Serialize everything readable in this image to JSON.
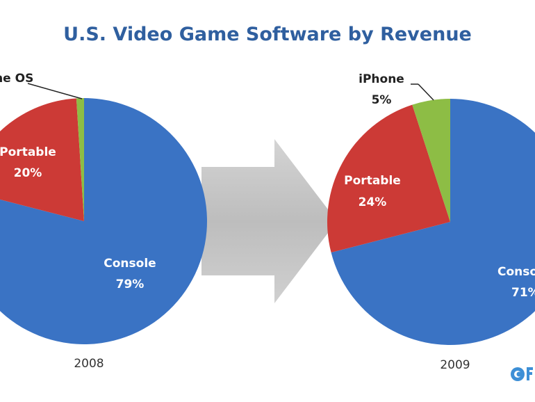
{
  "chart_data": [
    {
      "type": "pie",
      "title": "U.S. Video Game Software by Revenue",
      "caption": "2008",
      "slices": [
        {
          "label": "Console",
          "value": 79,
          "display": "79%",
          "color": "#3a73c4"
        },
        {
          "label": "Portable",
          "value": 20,
          "display": "20%",
          "color": "#cc3a36"
        },
        {
          "label": "iPhone OS",
          "value": 1,
          "display": "",
          "color": "#8dbd45"
        }
      ]
    },
    {
      "type": "pie",
      "caption": "2009",
      "slices": [
        {
          "label": "Console",
          "value": 71,
          "display": "71%",
          "color": "#3a73c4"
        },
        {
          "label": "Portable",
          "value": 24,
          "display": "24%",
          "color": "#cc3a36"
        },
        {
          "label": "iPhone",
          "value": 5,
          "display": "5%",
          "color": "#8dbd45"
        }
      ]
    }
  ],
  "colors": {
    "title": "#2f5f9f",
    "arrow": "#c8c8c8",
    "label_text": "#ffffff",
    "outside_text": "#222222"
  },
  "logo_icon": "circle-logo-icon"
}
